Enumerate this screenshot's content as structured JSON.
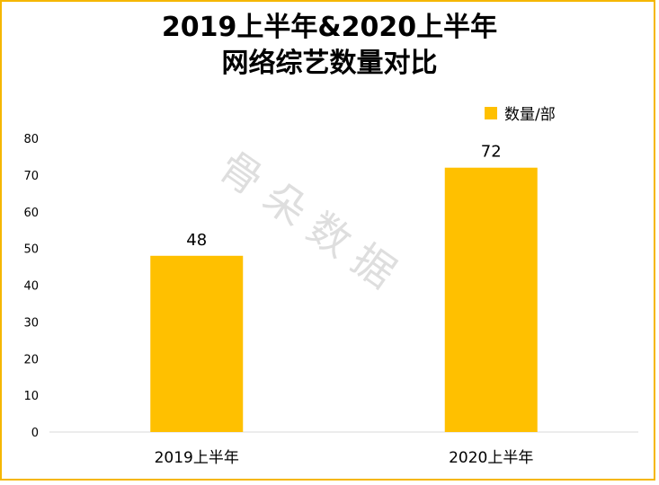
{
  "chart_data": {
    "type": "bar",
    "title": "2019上半年&2020上半年",
    "subtitle": "网络综艺数量对比",
    "categories": [
      "2019上半年",
      "2020上半年"
    ],
    "series": [
      {
        "name": "数量/部",
        "values": [
          48,
          72
        ],
        "color": "#ffc000"
      }
    ],
    "ylim": [
      0,
      80
    ],
    "yticks": [
      0,
      10,
      20,
      30,
      40,
      50,
      60,
      70,
      80
    ],
    "grid": false,
    "legend": "top-right",
    "data_labels": [
      "48",
      "72"
    ]
  },
  "watermark": "骨朵数据",
  "colors": {
    "border": "#f5b700",
    "bar": "#ffc000"
  }
}
